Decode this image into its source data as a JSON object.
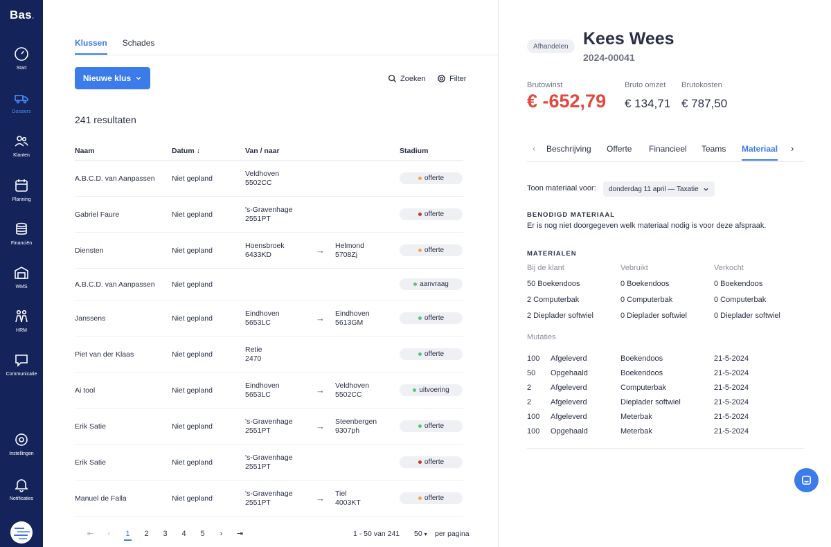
{
  "app": {
    "logo": "Bas"
  },
  "sidebar": {
    "items": [
      {
        "label": "Start",
        "icon": "gauge-icon"
      },
      {
        "label": "Dossiers",
        "icon": "truck-icon",
        "active": true
      },
      {
        "label": "Klanten",
        "icon": "users-icon"
      },
      {
        "label": "Planning",
        "icon": "calendar-icon"
      },
      {
        "label": "Financiën",
        "icon": "coins-icon"
      },
      {
        "label": "WMS",
        "icon": "warehouse-icon"
      },
      {
        "label": "HRM",
        "icon": "people-icon"
      },
      {
        "label": "Communicatie",
        "icon": "chat-bubble-icon"
      },
      {
        "label": "Instellingen",
        "icon": "gear-icon"
      },
      {
        "label": "Notificaties",
        "icon": "bell-icon"
      }
    ]
  },
  "main": {
    "tabs": [
      {
        "label": "Klussen",
        "active": true
      },
      {
        "label": "Schades",
        "active": false
      }
    ],
    "new_button": "Nieuwe klus",
    "search_label": "Zoeken",
    "filter_label": "Filter",
    "results_text": "241 resultaten",
    "columns": {
      "naam": "Naam",
      "datum": "Datum",
      "van_naar": "Van / naar",
      "stadium": "Stadium"
    },
    "rows": [
      {
        "naam": "A.B.C.D. van Aanpassen",
        "datum": "Niet gepland",
        "van_city": "Veldhoven",
        "van_zip": "5502CC",
        "naar_city": "",
        "naar_zip": "",
        "stadium": "offerte",
        "stadium_color": "#f4a259"
      },
      {
        "naam": "Gabriel Faure",
        "datum": "Niet gepland",
        "van_city": "'s-Gravenhage",
        "van_zip": "2551PT",
        "naar_city": "",
        "naar_zip": "",
        "stadium": "offerte",
        "stadium_color": "#c0392b"
      },
      {
        "naam": "Diensten",
        "datum": "Niet gepland",
        "van_city": "Hoensbroek",
        "van_zip": "6433KD",
        "naar_city": "Helmond",
        "naar_zip": "5708Zj",
        "stadium": "offerte",
        "stadium_color": "#f4a259"
      },
      {
        "naam": "A.B.C.D. van Aanpassen",
        "datum": "Niet gepland",
        "van_city": "",
        "van_zip": "",
        "naar_city": "",
        "naar_zip": "",
        "stadium": "aanvraag",
        "stadium_color": "#5cc27a"
      },
      {
        "naam": "Janssens",
        "datum": "Niet gepland",
        "van_city": "Eindhoven",
        "van_zip": "5653LC",
        "naar_city": "Eindhoven",
        "naar_zip": "5613GM",
        "stadium": "offerte",
        "stadium_color": "#5cc27a"
      },
      {
        "naam": "Piet van der Klaas",
        "datum": "Niet gepland",
        "van_city": "Retie",
        "van_zip": "2470",
        "naar_city": "",
        "naar_zip": "",
        "stadium": "offerte",
        "stadium_color": "#5cc27a"
      },
      {
        "naam": "Ai tool",
        "datum": "Niet gepland",
        "van_city": "Eindhoven",
        "van_zip": "5653LC",
        "naar_city": "Veldhoven",
        "naar_zip": "5502CC",
        "stadium": "uitvoering",
        "stadium_color": "#5cc27a"
      },
      {
        "naam": "Erik Satie",
        "datum": "Niet gepland",
        "van_city": "'s-Gravenhage",
        "van_zip": "2551PT",
        "naar_city": "Steenbergen",
        "naar_zip": "9307ph",
        "stadium": "offerte",
        "stadium_color": "#5cc27a"
      },
      {
        "naam": "Erik Satie",
        "datum": "Niet gepland",
        "van_city": "'s-Gravenhage",
        "van_zip": "2551PT",
        "naar_city": "",
        "naar_zip": "",
        "stadium": "offerte",
        "stadium_color": "#c0392b"
      },
      {
        "naam": "Manuel de Falla",
        "datum": "Niet gepland",
        "van_city": "'s-Gravenhage",
        "van_zip": "2551PT",
        "naar_city": "Tiel",
        "naar_zip": "4003KT",
        "stadium": "offerte",
        "stadium_color": "#f4a259"
      }
    ],
    "pagination": {
      "pages": [
        "1",
        "2",
        "3",
        "4",
        "5"
      ],
      "current": "1",
      "range_text": "1 - 50 van 241",
      "per_page": "50",
      "per_page_label": "per pagina"
    }
  },
  "detail": {
    "status": "Afhandelen",
    "name": "Kees Wees",
    "number": "2024-00041",
    "brutowinst_label": "Brutowinst",
    "brutowinst": "€ -652,79",
    "omzet_label": "Bruto omzet",
    "omzet": "€ 134,71",
    "kosten_label": "Brutokosten",
    "kosten": "€ 787,50",
    "tabs": [
      {
        "label": "Beschrijving",
        "active": false
      },
      {
        "label": "Offerte",
        "active": false
      },
      {
        "label": "Financieel",
        "active": false
      },
      {
        "label": "Teams",
        "active": false
      },
      {
        "label": "Materiaal",
        "active": true
      }
    ],
    "toon_label": "Toon materiaal voor:",
    "toon_value": "donderdag 11 april — Taxatie",
    "benodigd_title": "BENODIGD MATERIAAL",
    "benodigd_text": "Er is nog niet doorgegeven welk materiaal nodig is voor deze afspraak.",
    "materialen_title": "MATERIALEN",
    "mat_headers": [
      "Bij de klant",
      "Vebruikt",
      "Verkocht"
    ],
    "mat_rows": [
      [
        "50 Boekendoos",
        "0 Boekendoos",
        "0 Boekendoos"
      ],
      [
        "2 Computerbak",
        "0 Computerbak",
        "0 Computerbak"
      ],
      [
        "2 Dieplader softwiel",
        "0 Dieplader softwiel",
        "0 Dieplader softwiel"
      ]
    ],
    "mutaties_label": "Mutaties",
    "mutaties": [
      [
        "100",
        "Afgeleverd",
        "Boekendoos",
        "21-5-2024"
      ],
      [
        "50",
        "Opgehaald",
        "Boekendoos",
        "21-5-2024"
      ],
      [
        "2",
        "Afgeleverd",
        "Computerbak",
        "21-5-2024"
      ],
      [
        "2",
        "Afgeleverd",
        "Dieplader softwiel",
        "21-5-2024"
      ],
      [
        "100",
        "Afgeleverd",
        "Meterbak",
        "21-5-2024"
      ],
      [
        "100",
        "Opgehaald",
        "Meterbak",
        "21-5-2024"
      ]
    ]
  }
}
